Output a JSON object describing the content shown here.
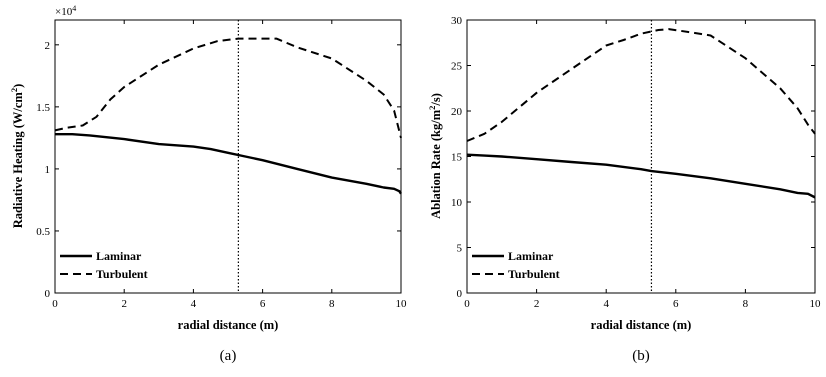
{
  "chart_data": [
    {
      "type": "line",
      "xlabel": "radial distance (m)",
      "ylabel": "Radiative Heating (W/cm²)",
      "ylabel_parts": {
        "main": "Radiative Heating (W/cm",
        "sup": "2",
        "end": ")"
      },
      "multiplier": "×10",
      "multiplier_exponent": "4",
      "caption": "(a)",
      "xlim": [
        0,
        10
      ],
      "ylim": [
        0,
        2.2
      ],
      "xticks": [
        0,
        2,
        4,
        6,
        8,
        10
      ],
      "yticks": [
        0,
        0.5,
        1,
        1.5,
        2
      ],
      "ytick_labels": [
        "0",
        "0.5",
        "1",
        "1.5",
        "2"
      ],
      "vline": 5.3,
      "legend": "bottom-left",
      "series": [
        {
          "name": "Laminar",
          "style": "solid",
          "x": [
            0,
            0.5,
            1,
            2,
            3,
            4,
            4.5,
            5,
            5.5,
            6,
            7,
            8,
            9,
            9.5,
            9.8,
            9.95,
            10
          ],
          "y": [
            1.28,
            1.28,
            1.27,
            1.24,
            1.2,
            1.18,
            1.16,
            1.13,
            1.1,
            1.07,
            1.0,
            0.93,
            0.88,
            0.85,
            0.84,
            0.82,
            0.8
          ]
        },
        {
          "name": "Turbulent",
          "style": "dashed",
          "x": [
            0,
            0.3,
            0.8,
            1.2,
            1.6,
            2,
            3,
            4,
            4.7,
            5.3,
            5.8,
            6.4,
            7,
            8,
            9,
            9.5,
            9.8,
            10
          ],
          "y": [
            1.31,
            1.33,
            1.35,
            1.42,
            1.56,
            1.66,
            1.84,
            1.97,
            2.03,
            2.05,
            2.05,
            2.05,
            1.98,
            1.89,
            1.71,
            1.6,
            1.47,
            1.25
          ]
        }
      ]
    },
    {
      "type": "line",
      "xlabel": "radial distance (m)",
      "ylabel": "Ablation Rate (kg/m²/s)",
      "ylabel_parts": {
        "main": "Ablation Rate (kg/m",
        "sup": "2",
        "end": "/s)"
      },
      "caption": "(b)",
      "xlim": [
        0,
        10
      ],
      "ylim": [
        0,
        30
      ],
      "xticks": [
        0,
        2,
        4,
        6,
        8,
        10
      ],
      "yticks": [
        0,
        5,
        10,
        15,
        20,
        25,
        30
      ],
      "ytick_labels": [
        "0",
        "5",
        "10",
        "15",
        "20",
        "25",
        "30"
      ],
      "vline": 5.3,
      "legend": "bottom-left",
      "series": [
        {
          "name": "Laminar",
          "style": "solid",
          "x": [
            0,
            0.5,
            1,
            2,
            3,
            4,
            5,
            5.3,
            6,
            7,
            8,
            9,
            9.5,
            9.8,
            9.95,
            10
          ],
          "y": [
            15.2,
            15.1,
            15.0,
            14.7,
            14.4,
            14.1,
            13.6,
            13.4,
            13.1,
            12.6,
            12.0,
            11.4,
            11.0,
            10.9,
            10.6,
            10.5
          ]
        },
        {
          "name": "Turbulent",
          "style": "dashed",
          "x": [
            0,
            0.5,
            1,
            2,
            3,
            4,
            4.5,
            5,
            5.5,
            5.8,
            6.5,
            7,
            8,
            9,
            9.5,
            9.8,
            10
          ],
          "y": [
            16.7,
            17.5,
            18.8,
            22.0,
            24.6,
            27.2,
            27.8,
            28.5,
            28.9,
            29.0,
            28.6,
            28.3,
            25.8,
            22.5,
            20.3,
            18.5,
            17.5
          ]
        }
      ]
    }
  ]
}
